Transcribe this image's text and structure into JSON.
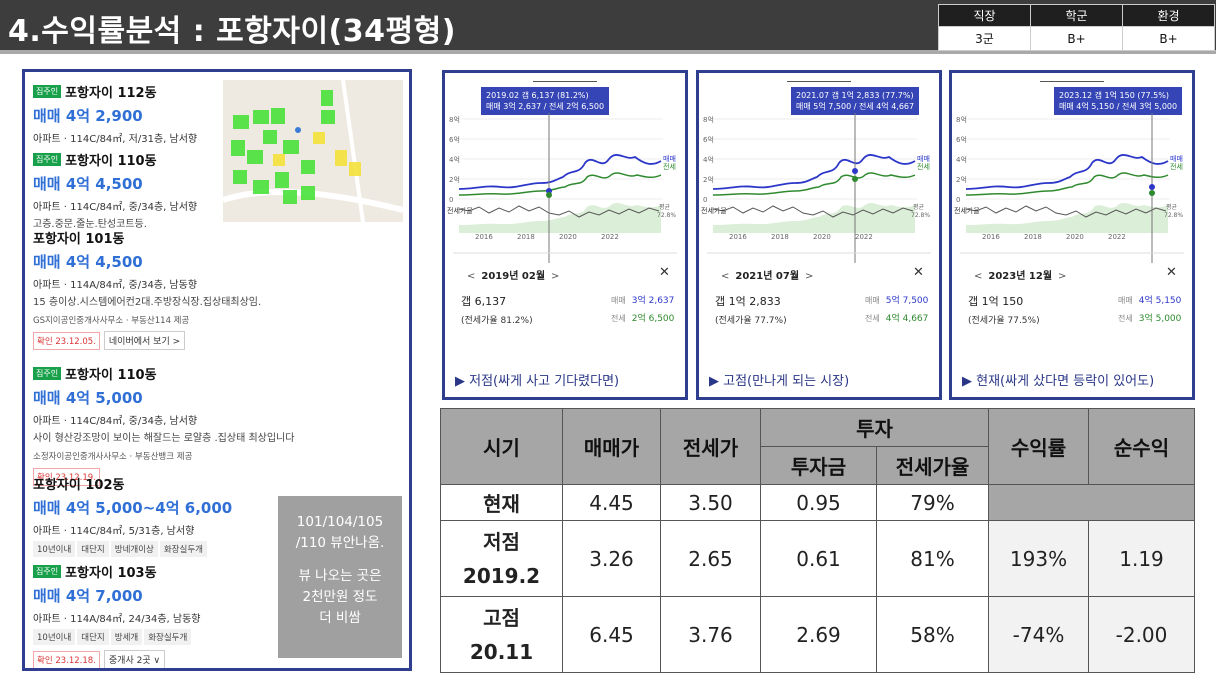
{
  "header": {
    "title": "4.수익률분석 : 포항자이(34평형)",
    "grade_headers": [
      "직장",
      "학군",
      "환경"
    ],
    "grade_values": [
      "3군",
      "B+",
      "B+"
    ]
  },
  "listings": [
    {
      "tag": "집주인",
      "name": "포항자이 112동",
      "price": "매매 4억 2,900",
      "detail": "아파트 · 114C/84㎡, 저/31층, 남서향"
    },
    {
      "tag": "집주인",
      "name": "포항자이 110동",
      "price": "매매 4억 4,500",
      "detail": "아파트 · 114C/84㎡, 중/34층, 남서향",
      "desc": "고층.중문.줄눈.탄성코트등."
    },
    {
      "name": "포항자이 101동",
      "price": "매매 4억 4,500",
      "detail": "아파트 · 114A/84㎡, 중/34층, 남동향",
      "desc": "15 층이상.시스템에어컨2대.주방장식장.집상태최상임.",
      "agent": "GS지이공인중개사사무소 · 부동산114 제공",
      "confirm": "확인 23.12.05.",
      "naver": "네이버에서 보기 >"
    },
    {
      "tag": "집주인",
      "name": "포항자이 110동",
      "price": "매매 4억 5,000",
      "detail": "아파트 · 114C/84㎡, 중/34층, 남서향",
      "desc": "사이 형산강조망이 보이는 해잘드는 로얄층 .집상태 최상입니다",
      "agent": "소정자이공인중개사사무소 · 부동산뱅크 제공",
      "confirm": "확인 23.12.19."
    },
    {
      "name": "포항자이 102동",
      "price": "매매 4억 5,000~4억 6,000",
      "detail": "아파트 · 114C/84㎡, 5/31층, 남서향",
      "chips": [
        "10년이내",
        "대단지",
        "방네개이상",
        "화장실두개"
      ]
    },
    {
      "tag": "집주인",
      "name": "포항자이 103동",
      "price": "매매 4억 7,000",
      "detail": "아파트 · 114A/84㎡, 24/34층, 남동향",
      "chips": [
        "10년이내",
        "대단지",
        "방세개",
        "화장실두개"
      ],
      "confirm": "확인 23.12.18.",
      "broker": "중개사 2곳 ∨"
    }
  ],
  "note": {
    "line1": "101/104/105",
    "line2": "/110 뷰안나옴.",
    "line3": "뷰 나오는 곳은",
    "line4": "2천만원 정도",
    "line5": "더 비쌈"
  },
  "charts": [
    {
      "tip1": "2019.02  갭 6,137 (81.2%)",
      "tip2": "매매 3억 2,637 / 전세 2억 6,500",
      "date": "2019년 02월",
      "gap": "갭 6,137",
      "rate": "(전세가율 81.2%)",
      "sale_label": "매매",
      "sale": "3억 2,637",
      "jeon_label": "전세",
      "jeon": "2억 6,500",
      "caption": "▶ 저점(싸게 사고 기다렸다면)",
      "years": [
        "2016",
        "2018",
        "2020",
        "2022"
      ],
      "yticks": [
        "8억",
        "6억",
        "4억",
        "2억",
        "0"
      ],
      "ratio_label": "전세가율",
      "avg": "평균",
      "avg_val": "72.8%",
      "leg_sale": "매매",
      "leg_jeon": "전세"
    },
    {
      "tip1": "2021.07  갭 1억 2,833 (77.7%)",
      "tip2": "매매 5억 7,500 / 전세 4억 4,667",
      "date": "2021년 07월",
      "gap": "갭 1억 2,833",
      "rate": "(전세가율 77.7%)",
      "sale_label": "매매",
      "sale": "5억 7,500",
      "jeon_label": "전세",
      "jeon": "4억 4,667",
      "caption": "▶ 고점(만나게 되는 시장)",
      "years": [
        "2016",
        "2018",
        "2020",
        "2022"
      ],
      "yticks": [
        "8억",
        "6억",
        "4억",
        "2억",
        "0"
      ],
      "ratio_label": "전세가율",
      "avg": "평균",
      "avg_val": "72.8%",
      "leg_sale": "매매",
      "leg_jeon": "전세"
    },
    {
      "tip1": "2023.12  갭 1억 150 (77.5%)",
      "tip2": "매매 4억 5,150 / 전세 3억 5,000",
      "date": "2023년 12월",
      "gap": "갭 1억 150",
      "rate": "(전세가율 77.5%)",
      "sale_label": "매매",
      "sale": "4억 5,150",
      "jeon_label": "전세",
      "jeon": "3억 5,000",
      "caption": "▶ 현재(싸게 샀다면 등락이 있어도)",
      "years": [
        "2016",
        "2018",
        "2020",
        "2022"
      ],
      "yticks": [
        "8억",
        "6억",
        "4억",
        "2억",
        "0"
      ],
      "ratio_label": "전세가율",
      "avg": "평균",
      "avg_val": "72.8%",
      "leg_sale": "매매",
      "leg_jeon": "전세"
    }
  ],
  "table": {
    "h_period": "시기",
    "h_sale": "매매가",
    "h_jeon": "전세가",
    "h_invest": "투자",
    "h_amount": "투자금",
    "h_ratio": "전세가율",
    "h_return": "수익률",
    "h_net": "순수익",
    "rows": [
      {
        "period": "현재",
        "sale": "4.45",
        "jeon": "3.50",
        "amount": "0.95",
        "ratio": "79%",
        "ret": "",
        "net": ""
      },
      {
        "period": "저점",
        "period2": "2019.2",
        "sale": "3.26",
        "jeon": "2.65",
        "amount": "0.61",
        "ratio": "81%",
        "ret": "193%",
        "net": "1.19"
      },
      {
        "period": "고점",
        "period2": "20.11",
        "sale": "6.45",
        "jeon": "3.76",
        "amount": "2.69",
        "ratio": "58%",
        "ret": "-74%",
        "net": "-2.00"
      }
    ]
  },
  "colors": {
    "sale_line": "#2c37c9",
    "jeon_line": "#2f8a2f",
    "title_bar": "#3d3d3d",
    "frame": "#2f3e8e"
  }
}
